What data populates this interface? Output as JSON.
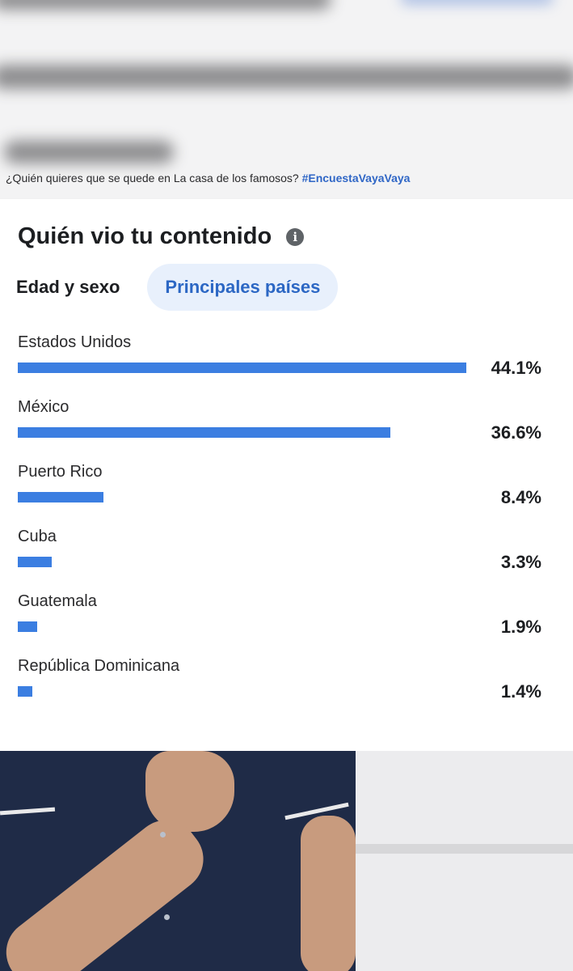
{
  "caption": {
    "text": "¿Quién quieres que se quede en La casa de los famosos?",
    "hashtag": "#EncuestaVayaVaya"
  },
  "audience": {
    "title": "Quién vio tu contenido",
    "info_icon": "info-icon",
    "tabs": [
      {
        "label": "Edad y sexo",
        "active": false
      },
      {
        "label": "Principales países",
        "active": true
      }
    ]
  },
  "colors": {
    "bar": "#3b7ee1",
    "active_tab_bg": "#e8f0fc",
    "active_tab_text": "#2c67c4",
    "hashtag": "#2f66c6"
  },
  "chart_data": {
    "type": "bar",
    "categories": [
      "Estados Unidos",
      "México",
      "Puerto Rico",
      "Cuba",
      "Guatemala",
      "República Dominicana"
    ],
    "values": [
      44.1,
      36.6,
      8.4,
      3.3,
      1.9,
      1.4
    ],
    "value_labels": [
      "44.1%",
      "36.6%",
      "8.4%",
      "3.3%",
      "1.9%",
      "1.4%"
    ]
  }
}
